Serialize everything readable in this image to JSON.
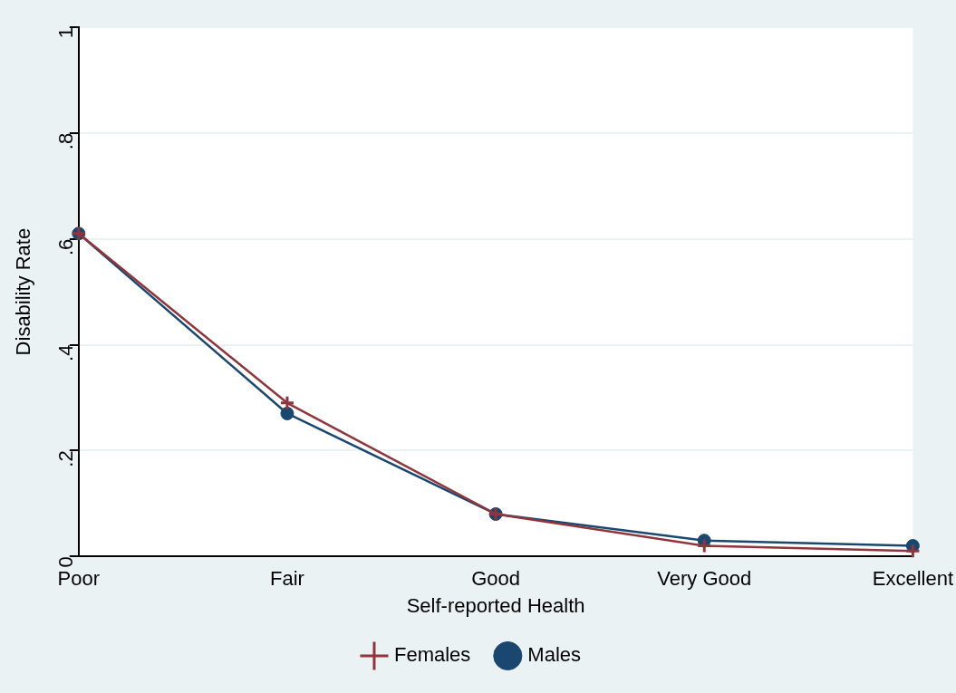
{
  "chart_data": {
    "type": "line",
    "xlabel": "Self-reported Health",
    "ylabel": "Disability Rate",
    "categories": [
      "Poor",
      "Fair",
      "Good",
      "Very Good",
      "Excellent"
    ],
    "series": [
      {
        "name": "Males",
        "color": "#1a476f",
        "marker": "circle",
        "values": [
          0.61,
          0.27,
          0.08,
          0.03,
          0.02
        ]
      },
      {
        "name": "Females",
        "color": "#90353b",
        "marker": "cross",
        "values": [
          0.61,
          0.29,
          0.08,
          0.02,
          0.01
        ]
      }
    ],
    "ylim": [
      0,
      1
    ],
    "yticks": [
      {
        "value": 0,
        "label": "0"
      },
      {
        "value": 0.2,
        "label": ".2"
      },
      {
        "value": 0.4,
        "label": ".4"
      },
      {
        "value": 0.6,
        "label": ".6"
      },
      {
        "value": 0.8,
        "label": ".8"
      },
      {
        "value": 1,
        "label": "1"
      }
    ],
    "grid": "y",
    "legend": "bottom",
    "line_style": "solid"
  }
}
